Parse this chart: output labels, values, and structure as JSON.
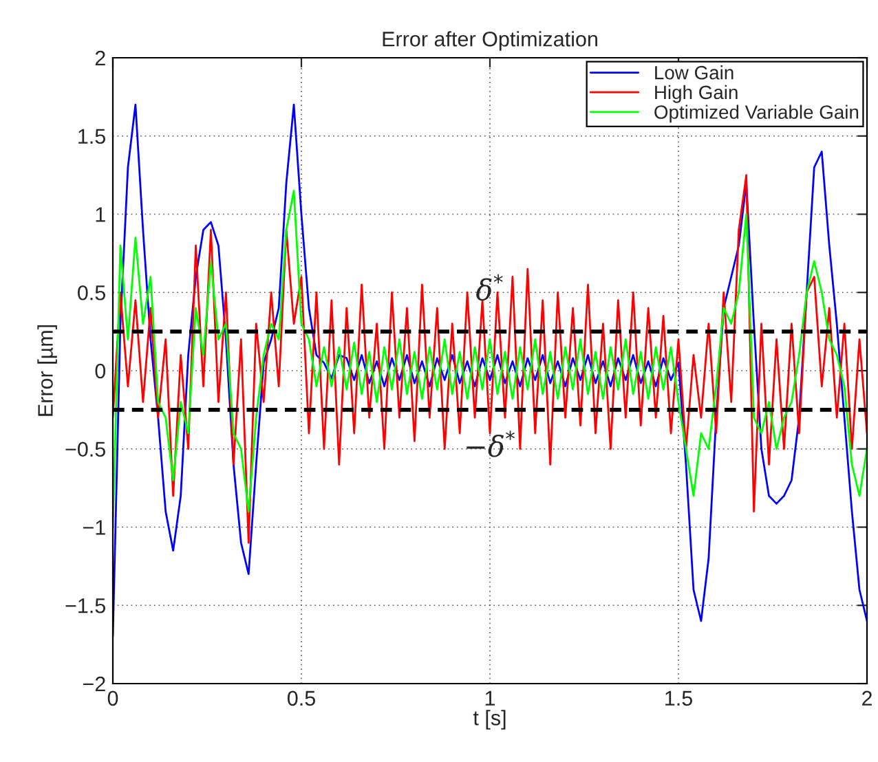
{
  "chart_data": {
    "type": "line",
    "title": "Error after Optimization",
    "xlabel": "t [s]",
    "ylabel": "Error [µm]",
    "x": [
      0,
      0.02,
      0.04,
      0.06,
      0.08,
      0.1,
      0.12,
      0.14,
      0.16,
      0.18,
      0.2,
      0.22,
      0.24,
      0.26,
      0.28,
      0.3,
      0.32,
      0.34,
      0.36,
      0.38,
      0.4,
      0.42,
      0.44,
      0.46,
      0.48,
      0.5,
      0.52,
      0.54,
      0.56,
      0.58,
      0.6,
      0.62,
      0.64,
      0.66,
      0.68,
      0.7,
      0.72,
      0.74,
      0.76,
      0.78,
      0.8,
      0.82,
      0.84,
      0.86,
      0.88,
      0.9,
      0.92,
      0.94,
      0.96,
      0.98,
      1.0,
      1.02,
      1.04,
      1.06,
      1.08,
      1.1,
      1.12,
      1.14,
      1.16,
      1.18,
      1.2,
      1.22,
      1.24,
      1.26,
      1.28,
      1.3,
      1.32,
      1.34,
      1.36,
      1.38,
      1.4,
      1.42,
      1.44,
      1.46,
      1.48,
      1.5,
      1.52,
      1.54,
      1.56,
      1.58,
      1.6,
      1.62,
      1.64,
      1.66,
      1.68,
      1.7,
      1.72,
      1.74,
      1.76,
      1.78,
      1.8,
      1.82,
      1.84,
      1.86,
      1.88,
      1.9,
      1.92,
      1.94,
      1.96,
      1.98,
      2.0
    ],
    "series": [
      {
        "name": "Low Gain",
        "color": "#0000ff",
        "values": [
          -1.7,
          0.3,
          1.3,
          1.7,
          0.9,
          0.2,
          -0.3,
          -0.9,
          -1.15,
          -0.8,
          0.1,
          0.6,
          0.9,
          0.95,
          0.8,
          0.2,
          -0.6,
          -1.1,
          -1.3,
          -0.6,
          0.05,
          0.2,
          0.4,
          1.2,
          1.7,
          1.0,
          0.4,
          0.1,
          0.05,
          -0.05,
          0.1,
          0.08,
          -0.06,
          0.1,
          -0.08,
          0.06,
          -0.1,
          0.08,
          -0.06,
          0.1,
          -0.08,
          0.06,
          -0.1,
          0.08,
          -0.06,
          0.1,
          -0.08,
          0.06,
          -0.1,
          0.08,
          -0.06,
          0.1,
          -0.08,
          0.06,
          -0.1,
          0.08,
          -0.06,
          0.1,
          -0.08,
          0.06,
          -0.1,
          0.08,
          -0.06,
          0.1,
          -0.08,
          0.06,
          -0.1,
          0.08,
          -0.06,
          0.1,
          -0.08,
          0.06,
          -0.1,
          0.08,
          -0.06,
          0.05,
          -0.6,
          -1.4,
          -1.6,
          -1.2,
          -0.3,
          0.4,
          0.6,
          0.8,
          1.2,
          0.3,
          -0.5,
          -0.8,
          -0.85,
          -0.8,
          -0.7,
          -0.3,
          0.5,
          1.3,
          1.4,
          0.8,
          0.3,
          -0.3,
          -0.9,
          -1.4,
          -1.6
        ]
      },
      {
        "name": "High Gain",
        "color": "#ff0000",
        "values": [
          -0.3,
          0.5,
          -0.1,
          0.45,
          -0.2,
          0.4,
          -0.3,
          0.2,
          -0.8,
          0.1,
          -0.5,
          0.8,
          -0.1,
          0.9,
          -0.2,
          0.5,
          -0.6,
          0.2,
          -1.1,
          0.3,
          -0.2,
          0.5,
          -0.1,
          0.9,
          0.3,
          0.6,
          -0.4,
          0.5,
          -0.5,
          0.45,
          -0.6,
          0.4,
          -0.4,
          0.55,
          -0.3,
          0.3,
          -0.5,
          0.5,
          -0.3,
          0.4,
          -0.45,
          0.55,
          -0.3,
          0.4,
          -0.5,
          0.3,
          -0.4,
          0.5,
          -0.3,
          0.45,
          -0.4,
          0.5,
          -0.3,
          0.6,
          -0.5,
          0.65,
          -0.4,
          0.45,
          -0.6,
          0.5,
          -0.3,
          0.4,
          -0.35,
          0.55,
          -0.4,
          0.3,
          -0.5,
          0.45,
          -0.3,
          0.5,
          -0.35,
          0.4,
          -0.3,
          0.35,
          -0.4,
          0.2,
          -0.5,
          0.1,
          -0.3,
          0.3,
          -0.4,
          0.5,
          -0.2,
          0.9,
          1.25,
          -0.9,
          0.3,
          -0.6,
          0.2,
          -0.5,
          0.3,
          -0.4,
          0.5,
          0.6,
          -0.1,
          0.4,
          -0.3,
          0.3,
          -0.5,
          0.2,
          -0.4
        ]
      },
      {
        "name": "Optimized Variable Gain",
        "color": "#00ff00",
        "values": [
          -1.0,
          0.8,
          0.2,
          0.85,
          0.3,
          0.6,
          -0.2,
          -0.3,
          -0.7,
          -0.2,
          -0.4,
          0.4,
          0.1,
          0.7,
          0.2,
          0.3,
          -0.4,
          -0.5,
          -0.9,
          -0.3,
          0.1,
          0.3,
          0.2,
          0.9,
          1.15,
          0.3,
          0.2,
          -0.1,
          0.15,
          -0.1,
          0.15,
          -0.12,
          0.18,
          -0.15,
          0.12,
          -0.2,
          0.15,
          -0.12,
          0.2,
          -0.15,
          0.12,
          -0.18,
          0.15,
          -0.12,
          0.2,
          -0.15,
          0.12,
          -0.18,
          0.15,
          -0.12,
          0.2,
          -0.15,
          0.12,
          -0.18,
          0.15,
          -0.12,
          0.2,
          -0.15,
          0.12,
          -0.18,
          0.15,
          -0.12,
          0.2,
          -0.15,
          0.12,
          -0.18,
          0.15,
          -0.12,
          0.2,
          -0.15,
          0.12,
          -0.18,
          0.15,
          -0.12,
          0.15,
          -0.2,
          -0.5,
          -0.8,
          -0.4,
          -0.5,
          -0.1,
          0.4,
          0.3,
          0.5,
          1.0,
          -0.3,
          -0.4,
          -0.2,
          -0.5,
          -0.3,
          -0.2,
          0.1,
          0.5,
          0.7,
          0.5,
          0.2,
          0.1,
          -0.1,
          -0.6,
          -0.8,
          -0.5
        ]
      }
    ],
    "xlim": [
      0,
      2
    ],
    "xticks": [
      0,
      0.5,
      1,
      1.5,
      2
    ],
    "ylim": [
      -2,
      2
    ],
    "yticks": [
      {
        "value": -2,
        "label": "−2"
      },
      {
        "value": -1.5,
        "label": "−1.5"
      },
      {
        "value": -1,
        "label": "−1"
      },
      {
        "value": -0.5,
        "label": "−0.5"
      },
      0,
      0.5,
      1,
      1.5,
      2
    ],
    "ref_lines": [
      {
        "axis": "y",
        "value": 0.25,
        "label": "δ$^{*}$",
        "color": "#000000",
        "line_style": "dashed"
      },
      {
        "axis": "y",
        "value": -0.25,
        "label": "−δ$^{*}$",
        "color": "#000000",
        "line_style": "dashed"
      }
    ],
    "grid": true,
    "legend": "top right",
    "line_style": "solid"
  }
}
